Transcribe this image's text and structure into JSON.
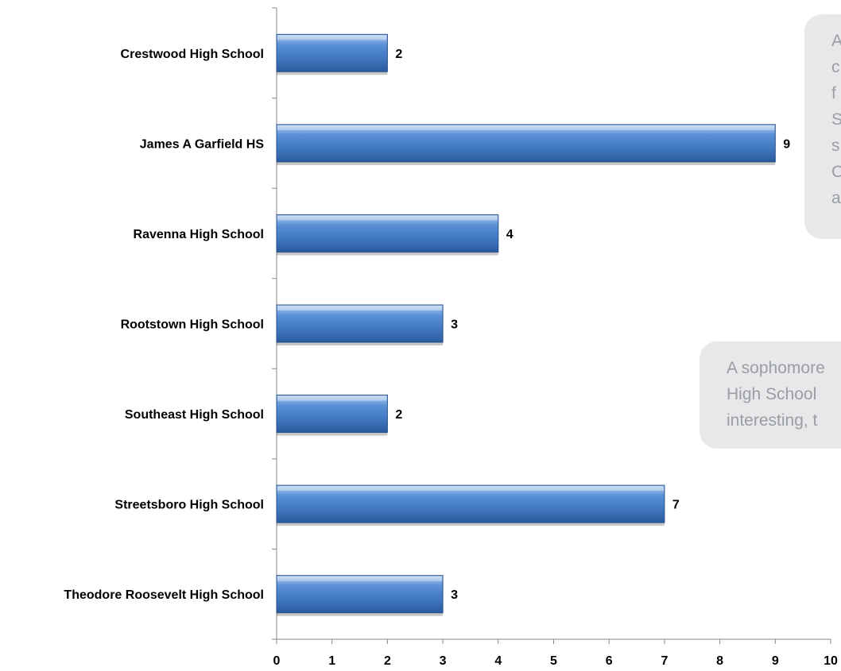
{
  "chart_data": {
    "type": "bar",
    "orientation": "horizontal",
    "categories": [
      "Crestwood High School",
      "James A Garfield HS",
      "Ravenna High School",
      "Rootstown High School",
      "Southeast High School",
      "Streetsboro High School",
      "Theodore Roosevelt High School"
    ],
    "values": [
      2,
      9,
      4,
      3,
      2,
      7,
      3
    ],
    "data_labels": [
      "2",
      "9",
      "4",
      "3",
      "2",
      "7",
      "3"
    ],
    "xlim": [
      0,
      10
    ],
    "x_ticks": [
      "0",
      "1",
      "2",
      "3",
      "4",
      "5",
      "6",
      "7",
      "8",
      "9",
      "10"
    ],
    "grid": false,
    "colors": {
      "bar": "#4a80c8",
      "bar_light": "#a7c5ec",
      "bar_dark": "#244f8a",
      "axis": "#888888"
    }
  },
  "callouts": [
    {
      "lines": [
        "A",
        "c",
        "f",
        "S",
        "s",
        "C",
        "a"
      ]
    },
    {
      "lines": [
        "A sophomore",
        "High School",
        "interesting, t"
      ]
    }
  ]
}
